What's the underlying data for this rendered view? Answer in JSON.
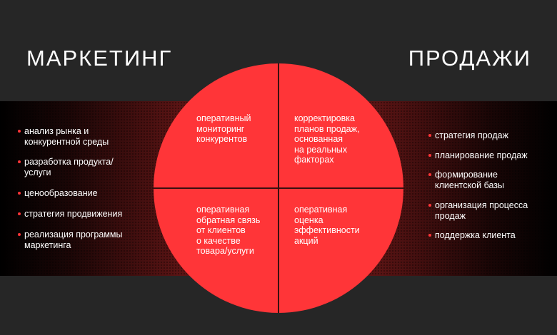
{
  "colors": {
    "accent": "#ff3538",
    "background": "#262626"
  },
  "marketing": {
    "title": "МАРКЕТИНГ",
    "items": [
      "анализ рынка и\nконкурентной среды",
      "разработка продукта/\nуслуги",
      "ценообразование",
      "стратегия продвижения",
      "реализация программы\nмаркетинга"
    ]
  },
  "sales": {
    "title": "ПРОДАЖИ",
    "items": [
      "стратегия продаж",
      "планирование продаж",
      "формирование\nклиентской базы",
      "организация процесса\nпродаж",
      "поддержка клиента"
    ]
  },
  "circle": {
    "quadrants": [
      "оперативный\nмониторинг\nконкурентов",
      "корректировка\nпланов продаж,\nоснованная\nна реальных\nфакторах",
      "оперативная\nобратная связь\nот клиентов\nо качестве\nтовара/услуги",
      "оперативная\nоценка\nэффективности\nакций"
    ]
  }
}
